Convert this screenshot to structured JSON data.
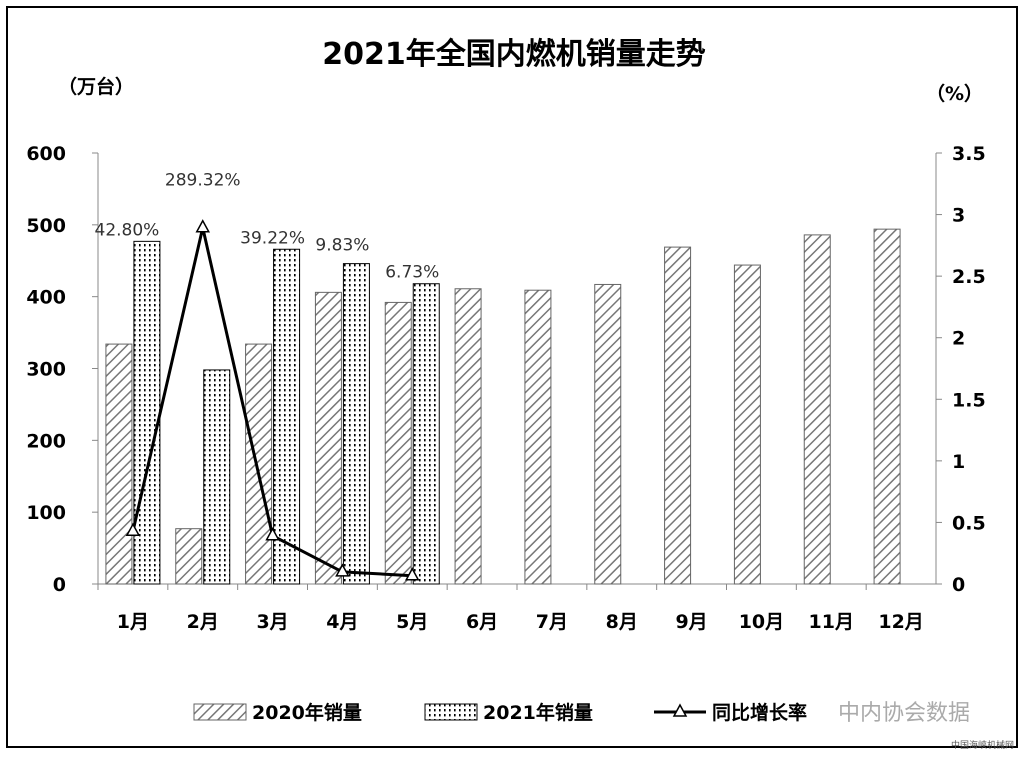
{
  "chart_data": {
    "type": "bar",
    "title": "2021年全国内燃机销量走势",
    "ylabel_left": "（万台）",
    "ylabel_right": "（%）",
    "categories": [
      "1月",
      "2月",
      "3月",
      "4月",
      "5月",
      "6月",
      "7月",
      "8月",
      "9月",
      "10月",
      "11月",
      "12月"
    ],
    "ylim_left": [
      0,
      600
    ],
    "yticks_left": [
      "0",
      "100",
      "200",
      "300",
      "400",
      "500",
      "600"
    ],
    "ylim_right": [
      0,
      3.5
    ],
    "yticks_right": [
      "0",
      "0.5",
      "1",
      "1.5",
      "2",
      "2.5",
      "3",
      "3.5"
    ],
    "series": [
      {
        "name": "2020年销量",
        "axis": "left",
        "style": "diagonal-hatch",
        "values": [
          334,
          77,
          334,
          406,
          392,
          411,
          409,
          417,
          469,
          444,
          486,
          494
        ]
      },
      {
        "name": "2021年销量",
        "axis": "left",
        "style": "dotted",
        "values": [
          477,
          298,
          466,
          446,
          418,
          null,
          null,
          null,
          null,
          null,
          null,
          null
        ]
      },
      {
        "name": "同比增长率",
        "axis": "right",
        "type": "line",
        "marker": "triangle",
        "values": [
          0.428,
          2.8932,
          0.3922,
          0.0983,
          0.0673,
          null,
          null,
          null,
          null,
          null,
          null,
          null
        ],
        "labels": [
          "42.80%",
          "289.32%",
          "39.22%",
          "9.83%",
          "6.73%"
        ]
      }
    ],
    "legend_position": "bottom",
    "grid": false
  },
  "watermark": "中内协会数据",
  "footer": "中国海峡机械网"
}
